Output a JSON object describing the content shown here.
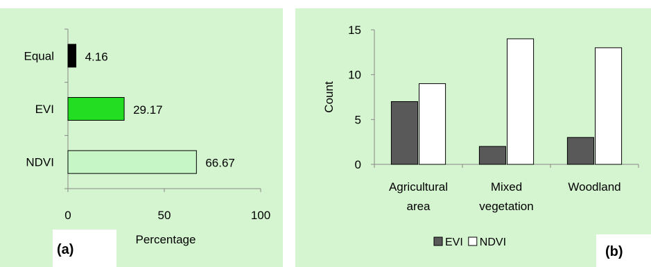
{
  "chart_data": [
    {
      "type": "bar",
      "orientation": "horizontal",
      "panel_label": "(a)",
      "xlabel": "Percentage",
      "ylabel": "",
      "xlim": [
        0,
        100
      ],
      "x_ticks": [
        "0",
        "50",
        "100"
      ],
      "categories": [
        "Equal",
        "EVI",
        "NDVI"
      ],
      "values": [
        4.16,
        29.17,
        66.67
      ],
      "value_labels": [
        "4.16",
        "29.17",
        "66.67"
      ],
      "colors": [
        "#000000",
        "#22dd22",
        "#c6f5c6"
      ],
      "grid": false,
      "background": "#d5f5d0"
    },
    {
      "type": "bar",
      "orientation": "vertical",
      "panel_label": "(b)",
      "ylabel": "Count",
      "xlabel": "",
      "ylim": [
        0,
        15
      ],
      "y_ticks": [
        "0",
        "5",
        "10",
        "15"
      ],
      "categories": [
        [
          "Agricultural",
          "area"
        ],
        [
          "Mixed",
          "vegetation"
        ],
        [
          "Woodland"
        ]
      ],
      "series": [
        {
          "name": "EVI",
          "values": [
            7,
            2,
            3
          ],
          "color": "#595959"
        },
        {
          "name": "NDVI",
          "values": [
            9,
            14,
            13
          ],
          "color": "#ffffff"
        }
      ],
      "legend_position": "bottom",
      "grid": false,
      "background": "#d5f5d0"
    }
  ]
}
